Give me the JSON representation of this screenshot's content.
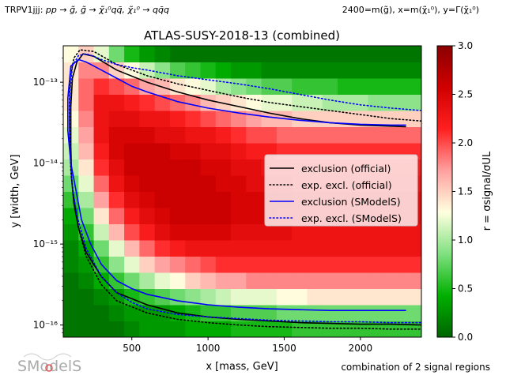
{
  "header": {
    "left_prefix": "TRPV1jjj: ",
    "left_process": "pp → g̃, g̃ → χ̃₁⁰qq̄, χ̃₁⁰ → qq̄q",
    "right_text": "2400=m(g̃), x=m(χ̃₁⁰), y=Γ(χ̃₁⁰)"
  },
  "footer": {
    "signal_regions": "combination of 2 signal regions",
    "logo_text": "SModelS"
  },
  "chart_data": {
    "type": "heatmap",
    "title": "ATLAS-SUSY-2018-13 (combined)",
    "xlabel": "x [mass, GeV]",
    "ylabel": "y [width, GeV]",
    "xlim": [
      50,
      2400
    ],
    "ylog10lim": [
      -16.15,
      -12.55
    ],
    "xticks": [
      500,
      1000,
      1500,
      2000
    ],
    "xtick_labels": [
      "500",
      "1000",
      "1500",
      "2000"
    ],
    "yticks_log10": [
      -16,
      -15,
      -14,
      -13
    ],
    "ytick_labels": [
      "10⁻¹⁶",
      "10⁻¹⁵",
      "10⁻¹⁴",
      "10⁻¹³"
    ],
    "colorbar": {
      "label": "r = σsignal/σUL",
      "min": 0,
      "max": 3,
      "ticks": [
        0.0,
        0.5,
        1.0,
        1.5,
        2.0,
        2.5,
        3.0
      ],
      "tick_labels": [
        "0.0",
        "0.5",
        "1.0",
        "1.5",
        "2.0",
        "2.5",
        "3.0"
      ],
      "colors": [
        "#006400",
        "#00b000",
        "#80e080",
        "#ffffe0",
        "#ffa0a0",
        "#ff2020",
        "#d00000",
        "#8b0000"
      ]
    },
    "grid": {
      "x_edges": [
        50,
        150,
        250,
        350,
        450,
        550,
        650,
        750,
        850,
        950,
        1050,
        1150,
        1250,
        1350,
        1450,
        1550,
        1650,
        1750,
        1850,
        1950,
        2050,
        2150,
        2250,
        2350,
        2400
      ],
      "ylog10_edges": [
        -16.15,
        -15.95,
        -15.75,
        -15.55,
        -15.35,
        -15.15,
        -14.95,
        -14.75,
        -14.55,
        -14.35,
        -14.15,
        -13.95,
        -13.75,
        -13.55,
        -13.35,
        -13.15,
        -12.95,
        -12.75,
        -12.55
      ],
      "r_values": [
        [
          0.1,
          0.1,
          0.1,
          0.1,
          0.2,
          0.3,
          0.3,
          0.3,
          0.4,
          0.4,
          0.4,
          0.5,
          0.5,
          0.5,
          0.5,
          0.6,
          0.6,
          0.6,
          0.6,
          0.6,
          0.6,
          0.6,
          0.6,
          0.6
        ],
        [
          0.1,
          0.1,
          0.1,
          0.2,
          0.3,
          0.3,
          0.3,
          0.4,
          0.5,
          0.6,
          0.6,
          0.7,
          0.7,
          0.7,
          0.8,
          0.8,
          0.8,
          0.8,
          0.8,
          0.8,
          0.8,
          0.8,
          0.8,
          0.8
        ],
        [
          0.1,
          0.1,
          0.2,
          0.3,
          0.5,
          0.6,
          0.7,
          0.8,
          0.9,
          1.0,
          1.1,
          1.2,
          1.2,
          1.2,
          1.3,
          1.3,
          1.4,
          1.4,
          1.4,
          1.4,
          1.4,
          1.4,
          1.4,
          1.4
        ],
        [
          0.1,
          0.2,
          0.4,
          0.6,
          0.8,
          1.0,
          1.2,
          1.3,
          1.5,
          1.6,
          1.7,
          1.7,
          1.8,
          1.8,
          1.8,
          1.8,
          1.8,
          1.8,
          1.8,
          1.8,
          1.8,
          1.8,
          1.8,
          1.8
        ],
        [
          0.2,
          0.3,
          0.6,
          0.9,
          1.2,
          1.5,
          1.7,
          1.8,
          1.9,
          2.0,
          2.1,
          2.1,
          2.1,
          2.1,
          2.1,
          2.1,
          2.1,
          2.1,
          2.1,
          2.1,
          2.1,
          2.1,
          2.1,
          2.1
        ],
        [
          0.2,
          0.4,
          0.8,
          1.2,
          1.6,
          1.9,
          2.1,
          2.2,
          2.3,
          2.3,
          2.3,
          2.3,
          2.3,
          2.3,
          2.3,
          2.3,
          2.3,
          2.3,
          2.3,
          2.3,
          2.3,
          2.3,
          2.3,
          2.3
        ],
        [
          0.3,
          0.6,
          1.1,
          1.6,
          2.0,
          2.2,
          2.4,
          2.5,
          2.5,
          2.5,
          2.5,
          2.4,
          2.4,
          2.4,
          2.4,
          2.3,
          2.3,
          2.3,
          2.3,
          2.3,
          2.3,
          2.3,
          2.3,
          2.3
        ],
        [
          0.4,
          0.8,
          1.4,
          1.9,
          2.2,
          2.4,
          2.5,
          2.6,
          2.6,
          2.6,
          2.6,
          2.5,
          2.5,
          2.5,
          2.4,
          2.4,
          2.4,
          2.4,
          2.4,
          2.4,
          2.4,
          2.4,
          2.4,
          2.4
        ],
        [
          0.6,
          1.0,
          1.7,
          2.1,
          2.4,
          2.5,
          2.6,
          2.6,
          2.6,
          2.6,
          2.6,
          2.5,
          2.5,
          2.5,
          2.5,
          2.4,
          2.4,
          2.4,
          2.4,
          2.4,
          2.4,
          2.4,
          2.4,
          2.4
        ],
        [
          0.8,
          1.2,
          1.9,
          2.3,
          2.5,
          2.6,
          2.6,
          2.6,
          2.6,
          2.6,
          2.5,
          2.5,
          2.4,
          2.4,
          2.4,
          2.3,
          2.3,
          2.3,
          2.3,
          2.3,
          2.3,
          2.3,
          2.3,
          2.3
        ],
        [
          1.0,
          1.4,
          2.1,
          2.4,
          2.6,
          2.6,
          2.6,
          2.6,
          2.6,
          2.5,
          2.5,
          2.4,
          2.4,
          2.3,
          2.3,
          2.2,
          2.2,
          2.2,
          2.2,
          2.2,
          2.2,
          2.2,
          2.2,
          2.2
        ],
        [
          1.1,
          1.6,
          2.2,
          2.5,
          2.6,
          2.6,
          2.6,
          2.5,
          2.5,
          2.4,
          2.4,
          2.3,
          2.2,
          2.2,
          2.1,
          2.1,
          2.1,
          2.1,
          2.1,
          2.1,
          2.1,
          2.1,
          2.1,
          2.1
        ],
        [
          1.2,
          1.7,
          2.3,
          2.5,
          2.5,
          2.5,
          2.4,
          2.4,
          2.3,
          2.3,
          2.2,
          2.1,
          2.0,
          2.0,
          1.9,
          1.9,
          1.9,
          1.9,
          1.9,
          1.9,
          1.9,
          1.9,
          1.9,
          1.9
        ],
        [
          1.3,
          1.8,
          2.3,
          2.4,
          2.4,
          2.3,
          2.3,
          2.2,
          2.1,
          2.0,
          1.9,
          1.8,
          1.7,
          1.6,
          1.6,
          1.5,
          1.5,
          1.5,
          1.5,
          1.5,
          1.5,
          1.5,
          1.5,
          1.5
        ],
        [
          1.4,
          1.9,
          2.3,
          2.3,
          2.2,
          2.1,
          2.0,
          1.9,
          1.8,
          1.6,
          1.5,
          1.4,
          1.3,
          1.2,
          1.2,
          1.1,
          1.1,
          1.0,
          1.0,
          1.0,
          0.9,
          0.9,
          0.9,
          0.9
        ],
        [
          1.4,
          1.9,
          2.1,
          2.0,
          1.9,
          1.7,
          1.6,
          1.4,
          1.3,
          1.2,
          1.0,
          0.9,
          0.8,
          0.7,
          0.7,
          0.6,
          0.6,
          0.6,
          0.5,
          0.5,
          0.5,
          0.5,
          0.5,
          0.5
        ],
        [
          1.4,
          1.8,
          1.8,
          1.5,
          1.3,
          1.1,
          0.9,
          0.7,
          0.6,
          0.5,
          0.4,
          0.3,
          0.3,
          0.2,
          0.2,
          0.2,
          0.2,
          0.2,
          0.2,
          0.2,
          0.2,
          0.2,
          0.2,
          0.2
        ],
        [
          1.3,
          1.5,
          1.2,
          0.8,
          0.5,
          0.3,
          0.2,
          0.1,
          0.1,
          0.1,
          0.1,
          0.1,
          0.1,
          0.1,
          0.1,
          0.1,
          0.1,
          0.1,
          0.1,
          0.1,
          0.1,
          0.1,
          0.1,
          0.1
        ]
      ]
    },
    "series": [
      {
        "name": "exclusion (official)",
        "color": "#000000",
        "style": "solid",
        "x": [
          2300,
          2000,
          1800,
          1600,
          1400,
          1200,
          1000,
          800,
          600,
          400,
          250,
          180,
          140,
          110,
          100,
          100,
          105,
          120,
          150,
          200,
          300,
          400,
          600,
          800,
          1000,
          1200,
          1400,
          1600,
          1800,
          2000,
          2200,
          2400
        ],
        "ylog10": [
          -13.55,
          -13.53,
          -13.5,
          -13.45,
          -13.38,
          -13.3,
          -13.22,
          -13.12,
          -13.0,
          -12.85,
          -12.68,
          -12.65,
          -12.75,
          -12.95,
          -13.3,
          -13.8,
          -14.2,
          -14.5,
          -14.8,
          -15.1,
          -15.4,
          -15.6,
          -15.75,
          -15.85,
          -15.9,
          -15.93,
          -15.95,
          -15.97,
          -15.98,
          -15.99,
          -15.99,
          -16.0
        ]
      },
      {
        "name": "exp. excl. (official)",
        "color": "#000000",
        "style": "dotted",
        "x": [
          2400,
          2200,
          2000,
          1800,
          1600,
          1400,
          1200,
          1000,
          800,
          600,
          400,
          250,
          160,
          120,
          95,
          90,
          92,
          100,
          120,
          150,
          200,
          300,
          400,
          600,
          800,
          1000,
          1200,
          1400,
          1600,
          1800,
          2000,
          2200,
          2400
        ],
        "ylog10": [
          -13.48,
          -13.45,
          -13.4,
          -13.35,
          -13.3,
          -13.25,
          -13.18,
          -13.1,
          -13.02,
          -12.92,
          -12.78,
          -12.62,
          -12.6,
          -12.7,
          -12.95,
          -13.3,
          -13.7,
          -14.1,
          -14.45,
          -14.8,
          -15.15,
          -15.5,
          -15.7,
          -15.85,
          -15.93,
          -15.97,
          -16.0,
          -16.02,
          -16.03,
          -16.04,
          -16.04,
          -16.05,
          -16.05
        ]
      },
      {
        "name": "exclusion (SModelS)",
        "color": "#0000ff",
        "style": "solid",
        "x": [
          2300,
          2200,
          2000,
          1800,
          1600,
          1400,
          1200,
          1000,
          800,
          700,
          600,
          500,
          400,
          300,
          250,
          200,
          150,
          100,
          80,
          80,
          100,
          130,
          170,
          230,
          300,
          400,
          500,
          600,
          800,
          1000,
          1200,
          1400,
          1600,
          1800,
          2000,
          2200,
          2300
        ],
        "ylog10": [
          -13.53,
          -13.53,
          -13.52,
          -13.5,
          -13.47,
          -13.43,
          -13.38,
          -13.32,
          -13.24,
          -13.18,
          -13.12,
          -13.05,
          -12.95,
          -12.85,
          -12.8,
          -12.75,
          -12.72,
          -12.8,
          -13.2,
          -13.6,
          -14.0,
          -14.3,
          -14.7,
          -15.0,
          -15.25,
          -15.45,
          -15.55,
          -15.62,
          -15.7,
          -15.75,
          -15.78,
          -15.8,
          -15.81,
          -15.82,
          -15.82,
          -15.82,
          -15.82
        ]
      },
      {
        "name": "exp. excl. (SModelS)",
        "color": "#0000ff",
        "style": "dotted",
        "x": [
          2400,
          2200,
          2000,
          1800,
          1600,
          1400,
          1200,
          1000,
          800,
          600,
          500,
          400,
          300,
          250,
          200,
          150,
          110,
          95,
          90,
          95,
          110,
          140,
          200,
          300,
          400,
          500,
          600,
          800,
          1000,
          1200,
          1400,
          1600,
          1800,
          2000,
          2200,
          2400
        ],
        "ylog10": [
          -13.35,
          -13.32,
          -13.28,
          -13.22,
          -13.15,
          -13.08,
          -13.02,
          -12.97,
          -12.92,
          -12.85,
          -12.82,
          -12.78,
          -12.72,
          -12.68,
          -12.65,
          -12.67,
          -12.8,
          -13.1,
          -13.5,
          -13.9,
          -14.3,
          -14.65,
          -15.05,
          -15.4,
          -15.6,
          -15.72,
          -15.8,
          -15.87,
          -15.9,
          -15.92,
          -15.94,
          -15.95,
          -15.96,
          -15.96,
          -15.97,
          -15.97
        ]
      }
    ]
  }
}
